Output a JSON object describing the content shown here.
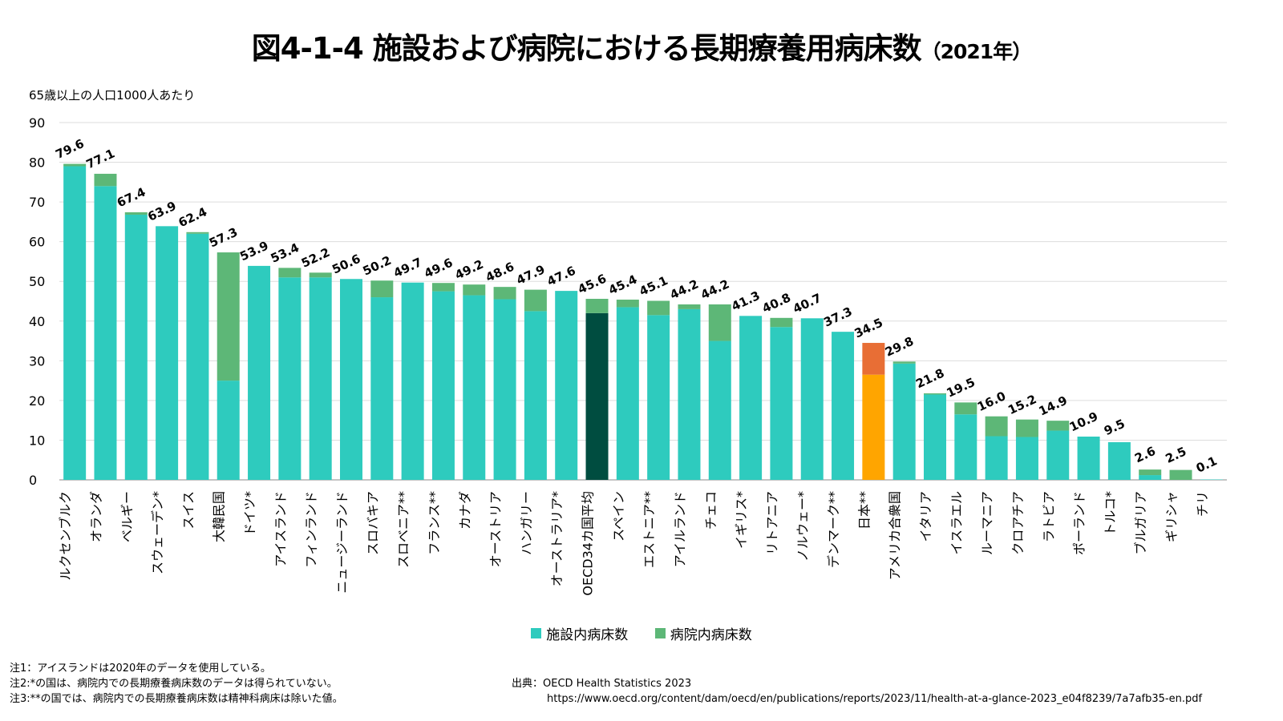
{
  "title": "図4-1-4 施設および病院における長期療養用病床数",
  "title_year": "（2021年）",
  "unit_label": "65歳以上の人口1000人あたり",
  "colors": {
    "facility": "#2ECBBE",
    "hospital": "#5DB777",
    "oecd_avg": "#004D40",
    "japan_facility": "#FFA500",
    "japan_hospital": "#E86E35",
    "grid": "#DDDDDD",
    "axis": "#888888"
  },
  "legend": {
    "facility_label": "施設内病床数",
    "hospital_label": "病院内病床数"
  },
  "notes": [
    "注1：アイスランドは2020年のデータを使用している。",
    "注2:*の国は、病院内での長期療養病床数のデータは得られていない。",
    "注3:**の国では、病院内での長期療養病床数は精神科病床は除いた値。"
  ],
  "source": {
    "line1": "出典：OECD Health Statistics 2023",
    "line2": "https://www.oecd.org/content/dam/oecd/en/publications/reports/2023/11/health-at-a-glance-2023_e04f8239/7a7afb35-en.pdf"
  },
  "chart_data": {
    "type": "bar",
    "stacked": true,
    "ylim": [
      0,
      90
    ],
    "yticks": [
      0,
      10,
      20,
      30,
      40,
      50,
      60,
      70,
      80,
      90
    ],
    "grid": true,
    "legend_position": "bottom",
    "categories": [
      "ルクセンブルク",
      "オランダ",
      "ベルギー",
      "スウェーデン*",
      "スイス",
      "大韓民国",
      "ドイツ*",
      "アイスランド",
      "フィンランド",
      "ニュージーランド",
      "スロバキア",
      "スロベニア**",
      "フランス**",
      "カナダ",
      "オーストリア",
      "ハンガリー",
      "オーストラリア*",
      "OECD34カ国平均",
      "スペイン",
      "エストニア**",
      "アイルランド",
      "チェコ",
      "イギリス*",
      "リトアニア",
      "ノルウェー*",
      "デンマーク**",
      "日本**",
      "アメリカ合衆国",
      "イタリア",
      "イスラエル",
      "ルーマニア",
      "クロアチア",
      "ラトビア",
      "ポーランド",
      "トルコ*",
      "ブルガリア",
      "ギリシャ",
      "チリ"
    ],
    "series": [
      {
        "name": "施設内病床数",
        "values": [
          79.0,
          74.0,
          66.8,
          63.9,
          62.0,
          25.0,
          53.9,
          51.0,
          51.0,
          50.6,
          46.0,
          49.7,
          47.5,
          46.5,
          45.5,
          42.5,
          47.6,
          42.0,
          43.5,
          41.5,
          43.0,
          35.0,
          41.3,
          38.5,
          40.7,
          37.3,
          26.5,
          29.3,
          21.5,
          16.5,
          11.0,
          10.8,
          12.4,
          10.9,
          9.5,
          1.2,
          0.0,
          0.1
        ]
      },
      {
        "name": "病院内病床数",
        "values": [
          0.6,
          3.1,
          0.6,
          0.0,
          0.4,
          32.3,
          0.0,
          2.4,
          1.2,
          0.0,
          4.2,
          0.0,
          2.1,
          2.7,
          3.1,
          5.4,
          0.0,
          3.6,
          1.9,
          3.6,
          1.2,
          9.2,
          0.0,
          2.3,
          0.0,
          0.0,
          8.0,
          0.5,
          0.3,
          3.0,
          5.0,
          4.4,
          2.5,
          0.0,
          0.0,
          1.4,
          2.5,
          0.0
        ]
      }
    ],
    "totals": [
      "79.6",
      "77.1",
      "67.4",
      "63.9",
      "62.4",
      "57.3",
      "53.9",
      "53.4",
      "52.2",
      "50.6",
      "50.2",
      "49.7",
      "49.6",
      "49.2",
      "48.6",
      "47.9",
      "47.6",
      "45.6",
      "45.4",
      "45.1",
      "44.2",
      "44.2",
      "41.3",
      "40.8",
      "40.7",
      "37.3",
      "34.5",
      "29.8",
      "21.8",
      "19.5",
      "16.0",
      "15.2",
      "14.9",
      "10.9",
      "9.5",
      "2.6",
      "2.5",
      "0.1"
    ],
    "highlight": {
      "OECD34カ国平均": "oecd_avg",
      "日本**": "japan"
    }
  }
}
